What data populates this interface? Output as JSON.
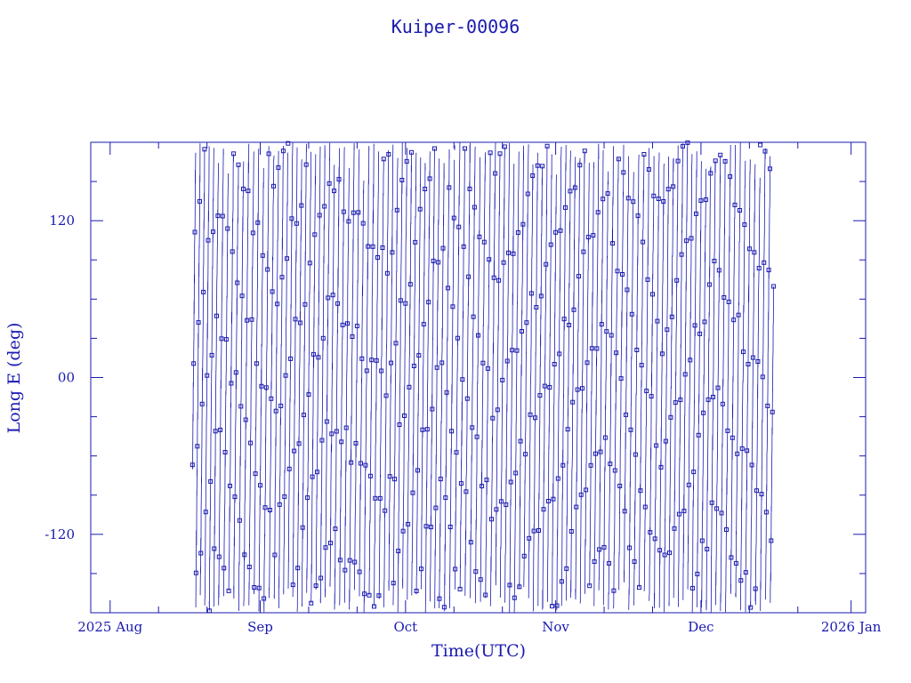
{
  "chart_data": {
    "type": "line",
    "title": "Kuiper-00096",
    "xlabel": "Time(UTC)",
    "ylabel": "Long E (deg)",
    "xlim": [
      "2025-07-28",
      "2026-01-04"
    ],
    "ylim": [
      -180,
      180
    ],
    "x_ticks": [
      {
        "date": "2025-08-01",
        "label": "2025 Aug"
      },
      {
        "date": "2025-09-01",
        "label": "Sep"
      },
      {
        "date": "2025-10-01",
        "label": "Oct"
      },
      {
        "date": "2025-11-01",
        "label": "Nov"
      },
      {
        "date": "2025-12-01",
        "label": "Dec"
      },
      {
        "date": "2026-01-01",
        "label": "2026 Jan"
      }
    ],
    "y_ticks": [
      {
        "value": 120,
        "label": "120"
      },
      {
        "value": 0,
        "label": "00"
      },
      {
        "value": -120,
        "label": "-120"
      }
    ],
    "grid": false,
    "line_color": "#1a1ab0",
    "marker": "square",
    "series": [
      {
        "start": "2025-08-18",
        "end": "2025-12-16",
        "x": [
          "2025-08-18",
          "2025-08-23",
          "2025-09-04",
          "2025-09-15",
          "2025-09-27",
          "2025-10-08",
          "2025-10-19",
          "2025-10-31",
          "2025-11-11",
          "2025-11-23",
          "2025-12-04",
          "2025-12-16"
        ],
        "y": [
          -88,
          35,
          -150,
          22,
          -60,
          130,
          -95,
          10,
          140,
          -75,
          60,
          -65
        ]
      }
    ]
  }
}
